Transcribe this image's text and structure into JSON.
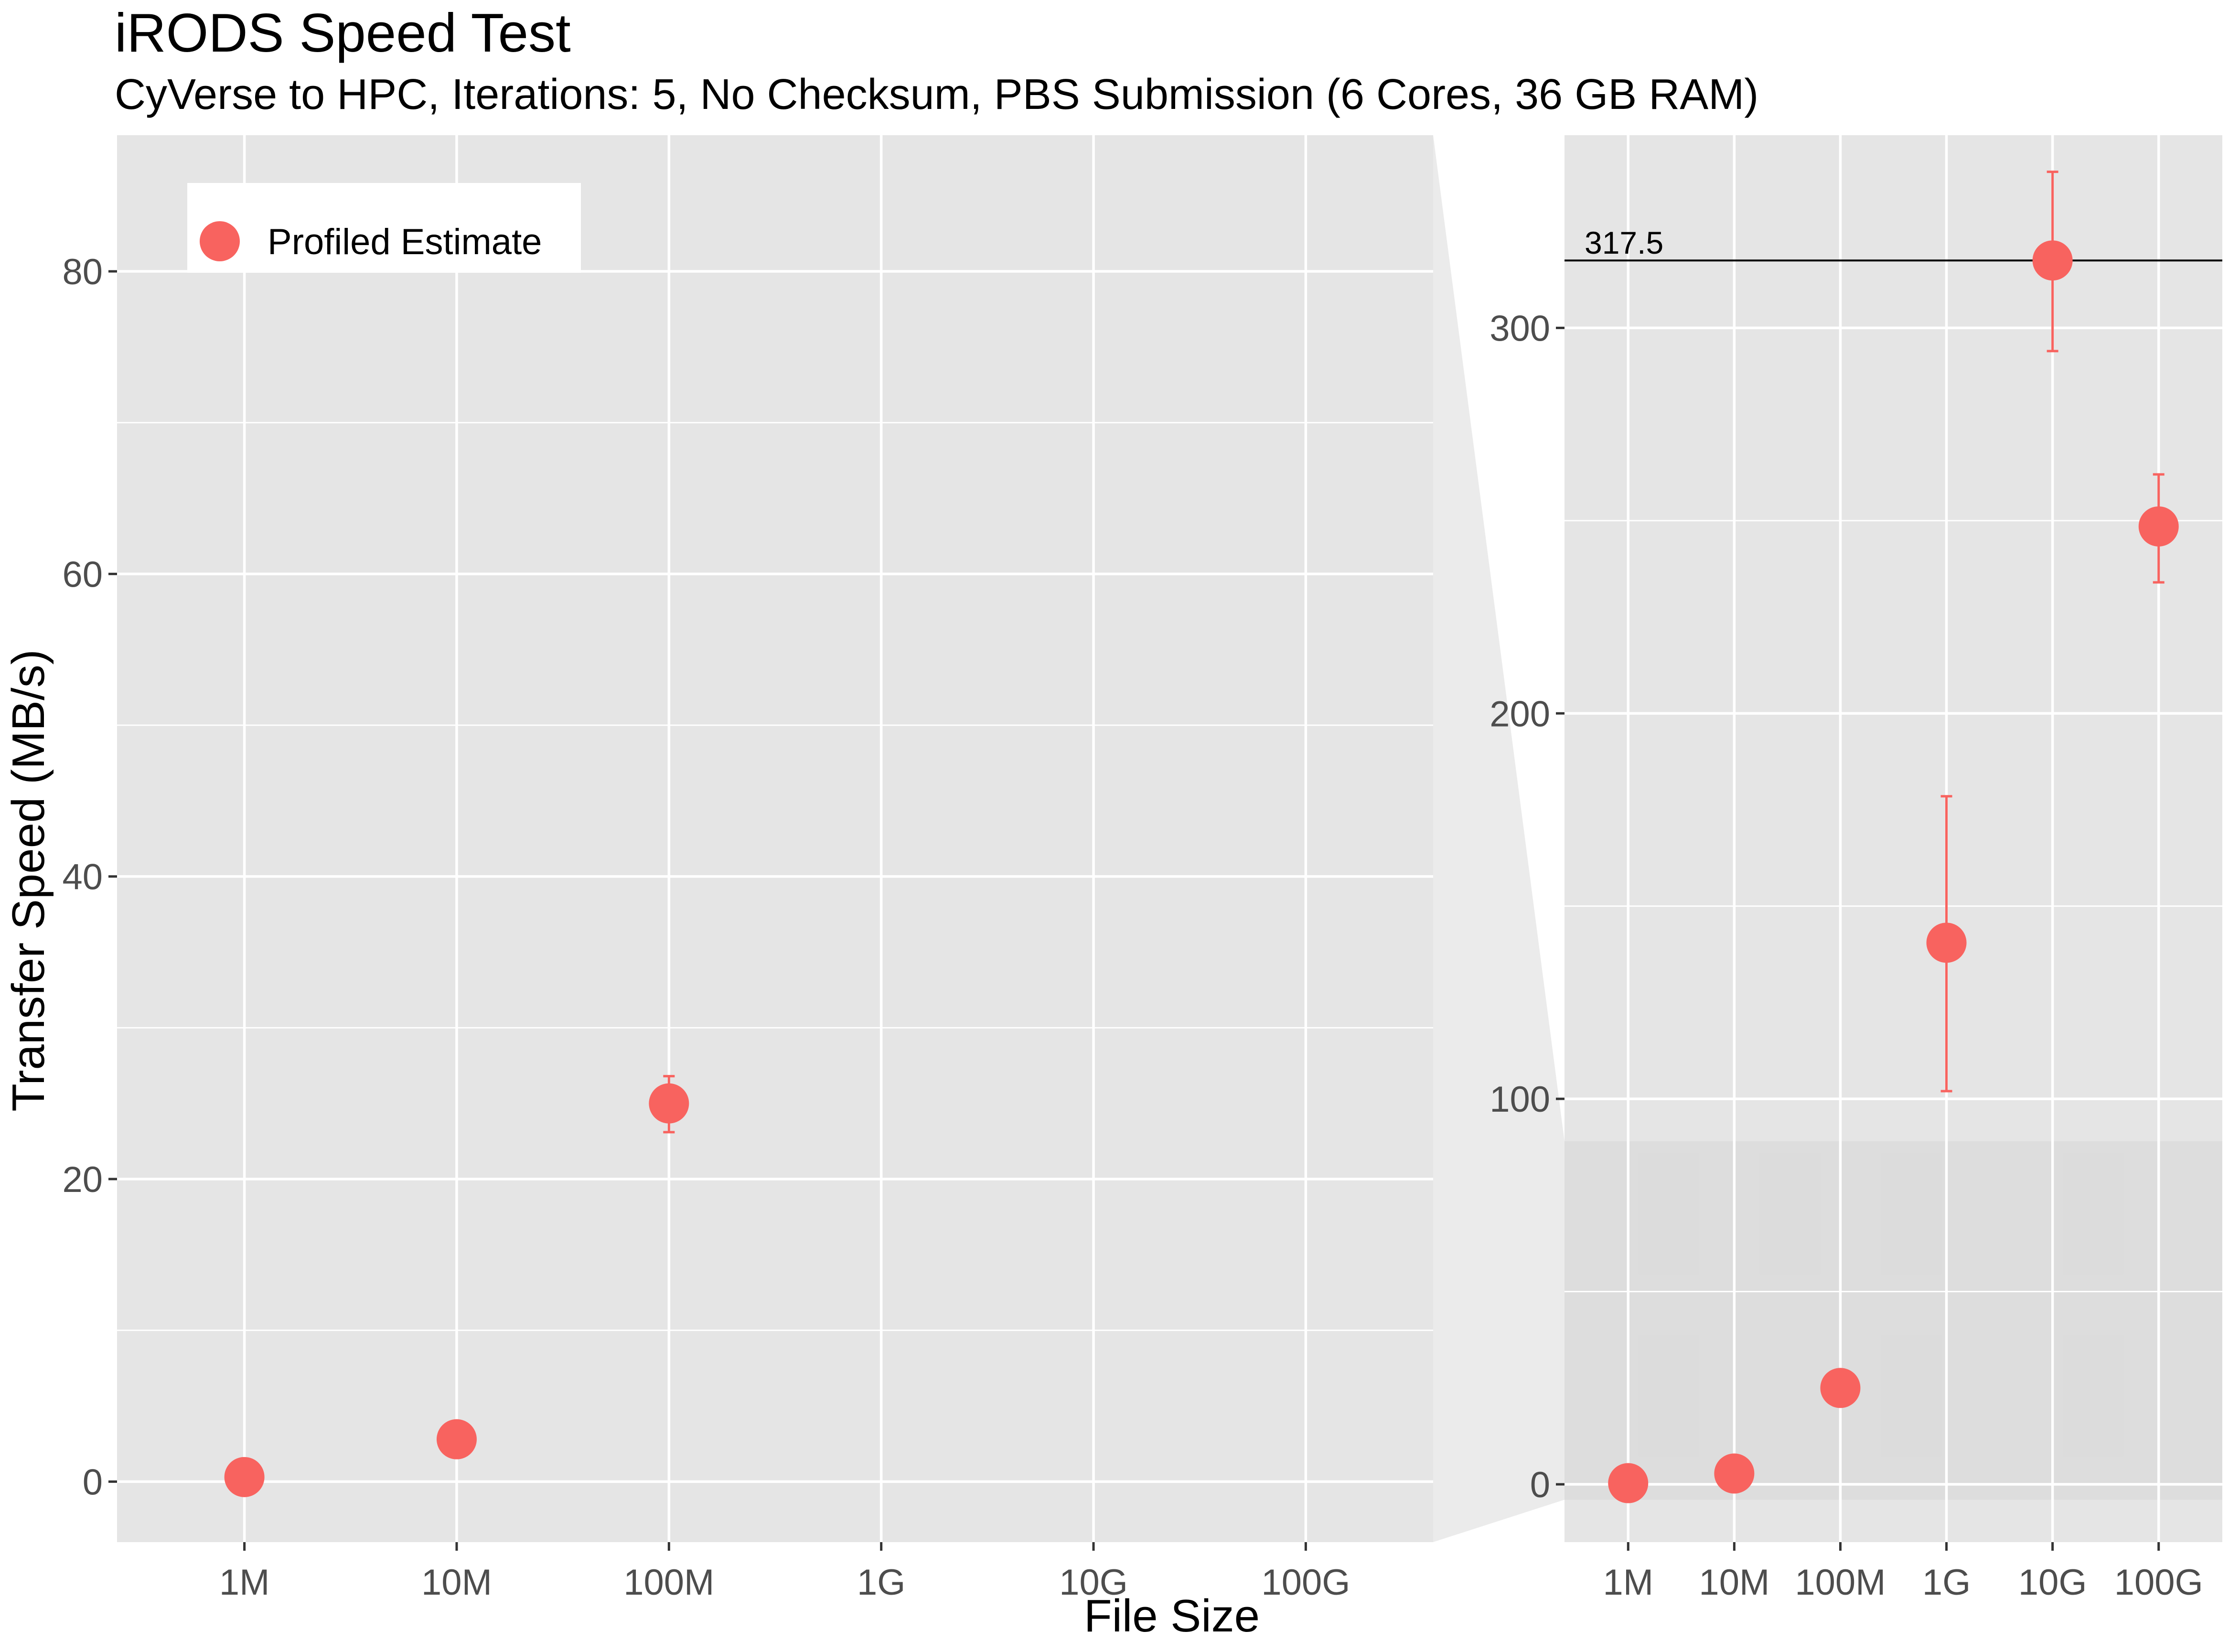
{
  "chart_data": {
    "type": "scatter",
    "title": "iRODS Speed Test",
    "subtitle": "CyVerse to HPC, Iterations: 5, No Checksum, PBS Submission (6 Cores, 36 GB RAM)",
    "xlabel": "File Size",
    "ylabel": "Transfer Speed (MB/s)",
    "categories": [
      "1M",
      "10M",
      "100M",
      "1G",
      "10G",
      "100G"
    ],
    "legend": {
      "position": "top-left",
      "label": "Profiled Estimate"
    },
    "colors": {
      "point": "#F8635F",
      "panel": "#E5E5E5",
      "grid": "#FFFFFF",
      "zoom": "#EBEBEB",
      "zoom_highlight": "#D9D9D9",
      "refline": "#000000"
    },
    "series": [
      {
        "name": "Profiled Estimate",
        "points": [
          {
            "x": "1M",
            "y": 0.3,
            "ymin": 0.3,
            "ymax": 0.3
          },
          {
            "x": "10M",
            "y": 2.8,
            "ymin": 2.8,
            "ymax": 2.8
          },
          {
            "x": "100M",
            "y": 25.0,
            "ymin": 23.1,
            "ymax": 26.8
          },
          {
            "x": "1G",
            "y": 140.5,
            "ymin": 102.0,
            "ymax": 178.5
          },
          {
            "x": "10G",
            "y": 317.5,
            "ymin": 294.0,
            "ymax": 340.5
          },
          {
            "x": "100G",
            "y": 248.5,
            "ymin": 234.0,
            "ymax": 262.0
          }
        ]
      }
    ],
    "panels": [
      {
        "id": "main",
        "ylim": [
          -4,
          89
        ],
        "yticks": [
          0,
          20,
          40,
          60,
          80
        ],
        "ytick_labels": [
          "0",
          "20",
          "40",
          "60",
          "80"
        ],
        "grid": true
      },
      {
        "id": "zoom",
        "ylim": [
          -15,
          350
        ],
        "yticks": [
          0,
          100,
          200,
          300
        ],
        "ytick_labels": [
          "0",
          "100",
          "200",
          "300"
        ],
        "grid": true,
        "highlight_range": [
          -4,
          89
        ]
      }
    ],
    "reference_line": {
      "y": 317.5,
      "label": "317.5"
    }
  }
}
